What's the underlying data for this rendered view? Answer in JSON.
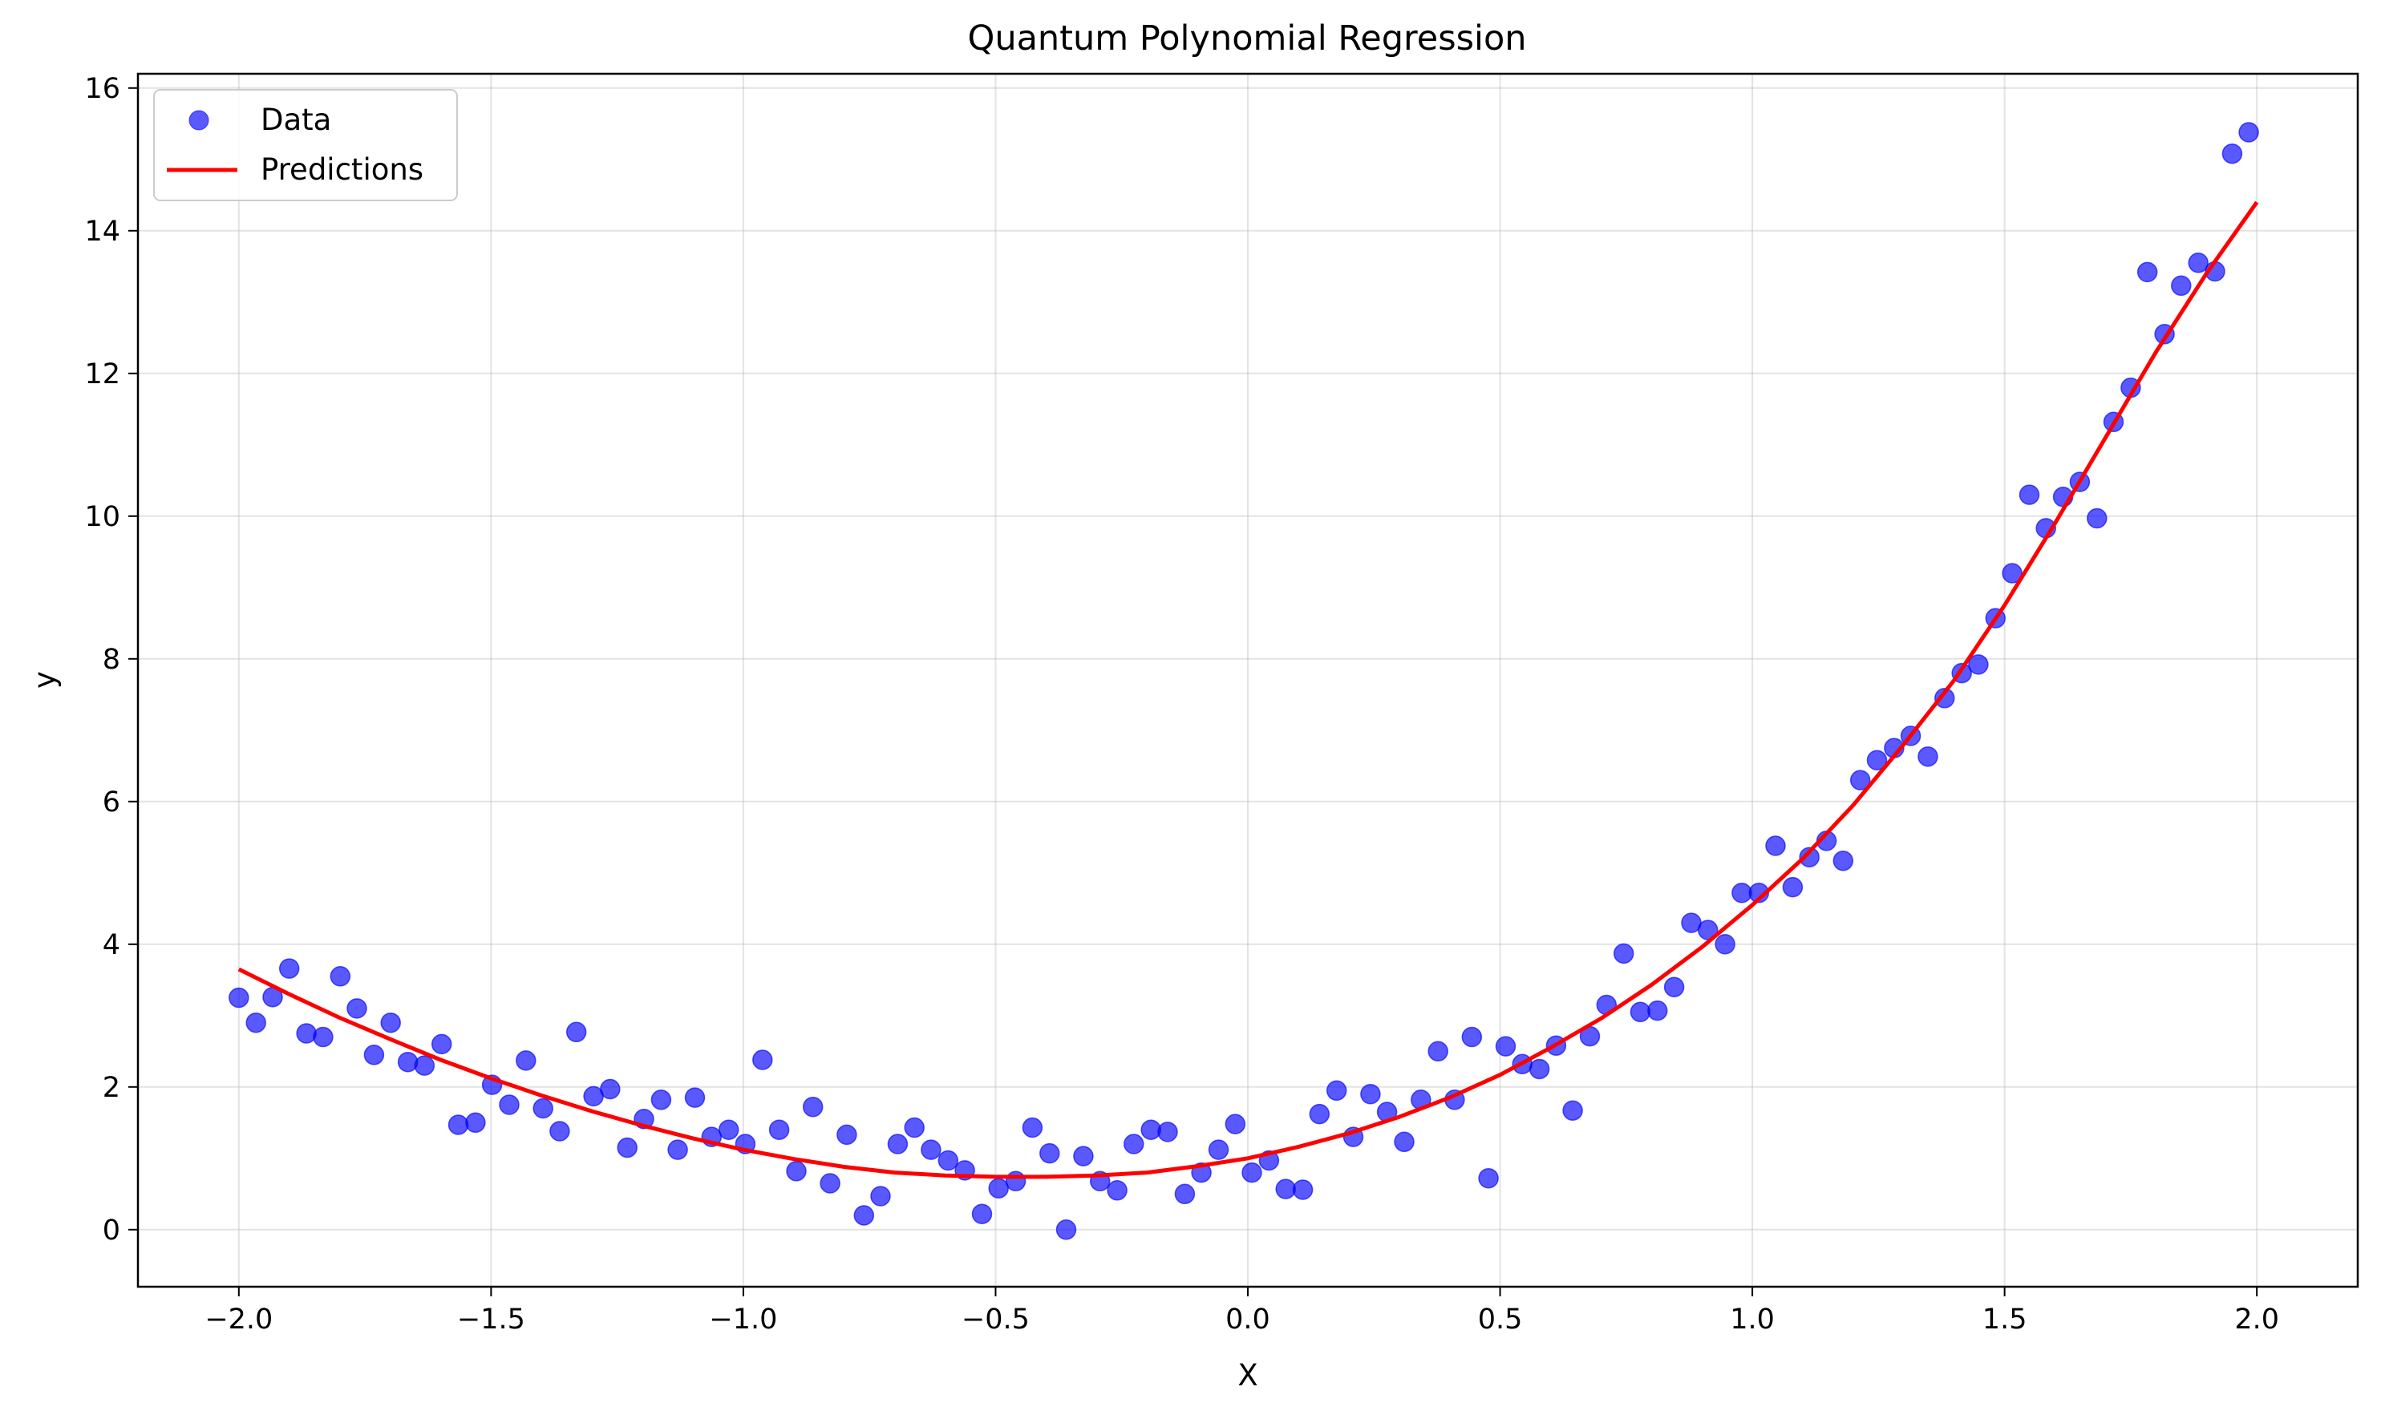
{
  "chart_data": {
    "type": "scatter",
    "title": "Quantum Polynomial Regression",
    "xlabel": "X",
    "ylabel": "y",
    "xlim": [
      -2.2,
      2.2
    ],
    "ylim": [
      -0.8,
      16.2
    ],
    "xticks": [
      -2.0,
      -1.5,
      -1.0,
      -0.5,
      0.0,
      0.5,
      1.0,
      1.5,
      2.0
    ],
    "xtick_labels": [
      "−2.0",
      "−1.5",
      "−1.0",
      "−0.5",
      "0.0",
      "0.5",
      "1.0",
      "1.5",
      "2.0"
    ],
    "yticks": [
      0,
      2,
      4,
      6,
      8,
      10,
      12,
      14,
      16
    ],
    "ytick_labels": [
      "0",
      "2",
      "4",
      "6",
      "8",
      "10",
      "12",
      "14",
      "16"
    ],
    "grid": true,
    "legend": {
      "position": "upper-left",
      "entries": [
        {
          "label": "Data",
          "marker": "circle",
          "color": "#0000ff"
        },
        {
          "label": "Predictions",
          "marker": "line",
          "color": "#ff0000"
        }
      ]
    },
    "series": [
      {
        "name": "Data",
        "kind": "scatter",
        "color": "#0000ff",
        "alpha": 0.65,
        "points": [
          [
            -2.0,
            3.25
          ],
          [
            -1.966,
            2.9
          ],
          [
            -1.933,
            3.26
          ],
          [
            -1.9,
            3.66
          ],
          [
            -1.866,
            2.75
          ],
          [
            -1.833,
            2.7
          ],
          [
            -1.799,
            3.55
          ],
          [
            -1.766,
            3.1
          ],
          [
            -1.732,
            2.45
          ],
          [
            -1.699,
            2.9
          ],
          [
            -1.665,
            2.35
          ],
          [
            -1.632,
            2.3
          ],
          [
            -1.598,
            2.6
          ],
          [
            -1.565,
            1.47
          ],
          [
            -1.531,
            1.5
          ],
          [
            -1.498,
            2.03
          ],
          [
            -1.464,
            1.75
          ],
          [
            -1.431,
            2.37
          ],
          [
            -1.397,
            1.7
          ],
          [
            -1.364,
            1.38
          ],
          [
            -1.331,
            2.77
          ],
          [
            -1.297,
            1.87
          ],
          [
            -1.264,
            1.97
          ],
          [
            -1.23,
            1.15
          ],
          [
            -1.197,
            1.55
          ],
          [
            -1.163,
            1.82
          ],
          [
            -1.13,
            1.12
          ],
          [
            -1.096,
            1.85
          ],
          [
            -1.063,
            1.3
          ],
          [
            -1.029,
            1.4
          ],
          [
            -0.996,
            1.2
          ],
          [
            -0.962,
            2.38
          ],
          [
            -0.929,
            1.4
          ],
          [
            -0.895,
            0.82
          ],
          [
            -0.862,
            1.72
          ],
          [
            -0.828,
            0.65
          ],
          [
            -0.795,
            1.33
          ],
          [
            -0.761,
            0.2
          ],
          [
            -0.728,
            0.47
          ],
          [
            -0.694,
            1.2
          ],
          [
            -0.661,
            1.43
          ],
          [
            -0.628,
            1.12
          ],
          [
            -0.594,
            0.97
          ],
          [
            -0.561,
            0.83
          ],
          [
            -0.527,
            0.22
          ],
          [
            -0.494,
            0.58
          ],
          [
            -0.46,
            0.68
          ],
          [
            -0.427,
            1.43
          ],
          [
            -0.393,
            1.07
          ],
          [
            -0.36,
            0.0
          ],
          [
            -0.326,
            1.03
          ],
          [
            -0.293,
            0.68
          ],
          [
            -0.259,
            0.55
          ],
          [
            -0.226,
            1.2
          ],
          [
            -0.192,
            1.4
          ],
          [
            -0.159,
            1.37
          ],
          [
            -0.125,
            0.5
          ],
          [
            -0.092,
            0.8
          ],
          [
            -0.058,
            1.12
          ],
          [
            -0.025,
            1.48
          ],
          [
            0.008,
            0.8
          ],
          [
            0.042,
            0.97
          ],
          [
            0.075,
            0.57
          ],
          [
            0.109,
            0.56
          ],
          [
            0.142,
            1.62
          ],
          [
            0.176,
            1.95
          ],
          [
            0.209,
            1.3
          ],
          [
            0.243,
            1.9
          ],
          [
            0.276,
            1.65
          ],
          [
            0.31,
            1.23
          ],
          [
            0.343,
            1.82
          ],
          [
            0.377,
            2.5
          ],
          [
            0.41,
            1.82
          ],
          [
            0.444,
            2.7
          ],
          [
            0.477,
            0.72
          ],
          [
            0.511,
            2.57
          ],
          [
            0.544,
            2.32
          ],
          [
            0.578,
            2.25
          ],
          [
            0.611,
            2.58
          ],
          [
            0.644,
            1.67
          ],
          [
            0.678,
            2.71
          ],
          [
            0.711,
            3.15
          ],
          [
            0.745,
            3.87
          ],
          [
            0.778,
            3.05
          ],
          [
            0.812,
            3.07
          ],
          [
            0.845,
            3.4
          ],
          [
            0.879,
            4.3
          ],
          [
            0.912,
            4.2
          ],
          [
            0.946,
            4.0
          ],
          [
            0.979,
            4.72
          ],
          [
            1.013,
            4.72
          ],
          [
            1.046,
            5.38
          ],
          [
            1.08,
            4.8
          ],
          [
            1.113,
            5.22
          ],
          [
            1.147,
            5.45
          ],
          [
            1.18,
            5.17
          ],
          [
            1.214,
            6.3
          ],
          [
            1.247,
            6.58
          ],
          [
            1.281,
            6.75
          ],
          [
            1.314,
            6.92
          ],
          [
            1.348,
            6.63
          ],
          [
            1.381,
            7.45
          ],
          [
            1.415,
            7.8
          ],
          [
            1.448,
            7.92
          ],
          [
            1.482,
            8.57
          ],
          [
            1.515,
            9.2
          ],
          [
            1.549,
            10.3
          ],
          [
            1.582,
            9.83
          ],
          [
            1.616,
            10.27
          ],
          [
            1.649,
            10.48
          ],
          [
            1.683,
            9.97
          ],
          [
            1.716,
            11.32
          ],
          [
            1.75,
            11.8
          ],
          [
            1.783,
            13.42
          ],
          [
            1.817,
            12.55
          ],
          [
            1.85,
            13.23
          ],
          [
            1.884,
            13.55
          ],
          [
            1.917,
            13.43
          ],
          [
            1.951,
            15.08
          ],
          [
            1.984,
            15.38
          ]
        ]
      },
      {
        "name": "Predictions",
        "kind": "line",
        "color": "#ff0000",
        "points": [
          [
            -2.0,
            3.65
          ],
          [
            -1.9,
            3.3
          ],
          [
            -1.8,
            2.97
          ],
          [
            -1.7,
            2.67
          ],
          [
            -1.6,
            2.38
          ],
          [
            -1.5,
            2.12
          ],
          [
            -1.4,
            1.88
          ],
          [
            -1.3,
            1.66
          ],
          [
            -1.2,
            1.46
          ],
          [
            -1.1,
            1.28
          ],
          [
            -1.0,
            1.12
          ],
          [
            -0.9,
            0.99
          ],
          [
            -0.8,
            0.88
          ],
          [
            -0.7,
            0.8
          ],
          [
            -0.6,
            0.76
          ],
          [
            -0.5,
            0.74
          ],
          [
            -0.4,
            0.74
          ],
          [
            -0.3,
            0.76
          ],
          [
            -0.2,
            0.8
          ],
          [
            -0.1,
            0.89
          ],
          [
            0.0,
            1.0
          ],
          [
            0.1,
            1.16
          ],
          [
            0.2,
            1.35
          ],
          [
            0.3,
            1.58
          ],
          [
            0.4,
            1.85
          ],
          [
            0.5,
            2.17
          ],
          [
            0.6,
            2.55
          ],
          [
            0.7,
            2.96
          ],
          [
            0.8,
            3.43
          ],
          [
            0.9,
            3.96
          ],
          [
            1.0,
            4.55
          ],
          [
            1.1,
            5.2
          ],
          [
            1.2,
            5.95
          ],
          [
            1.3,
            6.8
          ],
          [
            1.4,
            7.7
          ],
          [
            1.5,
            8.75
          ],
          [
            1.6,
            9.9
          ],
          [
            1.7,
            11.1
          ],
          [
            1.8,
            12.3
          ],
          [
            1.9,
            13.4
          ],
          [
            2.0,
            14.4
          ]
        ]
      }
    ]
  }
}
